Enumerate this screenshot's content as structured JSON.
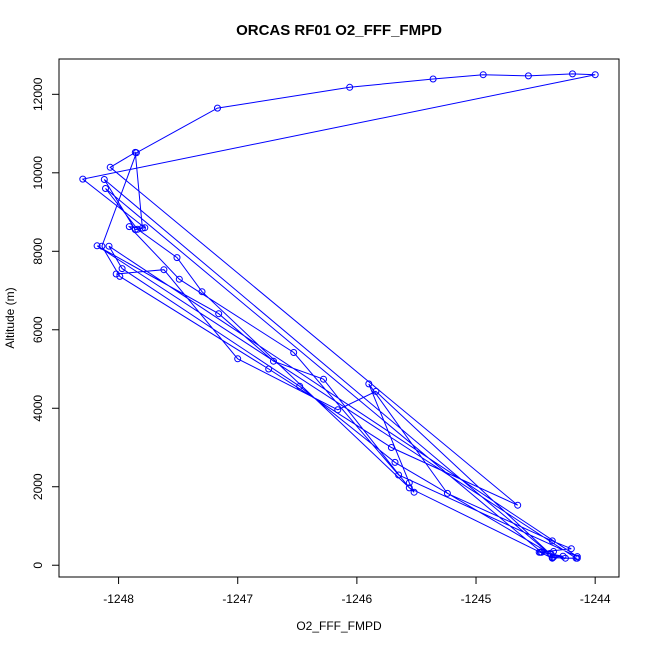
{
  "chart_data": {
    "type": "line",
    "title": "ORCAS RF01 O2_FFF_FMPD",
    "xlabel": "O2_FFF_FMPD",
    "ylabel": "Altitude (m)",
    "xlim": [
      -1248.5,
      -1243.8
    ],
    "ylim": [
      -300,
      12900
    ],
    "xticks": [
      -1248,
      -1247,
      -1246,
      -1245,
      -1244
    ],
    "yticks": [
      0,
      2000,
      4000,
      6000,
      8000,
      10000,
      12000
    ],
    "xtick_labels": [
      "-1248",
      "-1247",
      "-1246",
      "-1245",
      "-1244"
    ],
    "ytick_labels": [
      "0",
      "2000",
      "4000",
      "6000",
      "8000",
      "10000",
      "12000"
    ],
    "grid": false,
    "color": "#0000ff",
    "marker": "open-circle",
    "series": [
      {
        "x": [
          -1244.15,
          -1244.25,
          -1244.37,
          -1244.46,
          -1244.35,
          -1244.47,
          -1244.2,
          -1244.36,
          -1245.24,
          -1245.9,
          -1245.56,
          -1245.52,
          -1247.3,
          -1247.51,
          -1247.84,
          -1248.11,
          -1244.45,
          -1244.27,
          -1244.36,
          -1244.36,
          -1245.56,
          -1246.28,
          -1246.7,
          -1247.16,
          -1248.18,
          -1244.16,
          -1244.36,
          -1244.38,
          -1245.68,
          -1246.48,
          -1247.97,
          -1248.08,
          -1244.15,
          -1245.65,
          -1246.53,
          -1247.49,
          -1247.91,
          -1247.8,
          -1247.86,
          -1248.07,
          -1244.65,
          -1245.71,
          -1246.74,
          -1247.99,
          -1248.14,
          -1247.85,
          -1247.17,
          -1246.06,
          -1245.36,
          -1244.94,
          -1244.56,
          -1244.19,
          -1244.0,
          -1248.3,
          -1247.78,
          -1247.86,
          -1248.12,
          -1244.35,
          -1245.84,
          -1246.16,
          -1247.0,
          -1247.62,
          -1248.02
        ],
        "y": [
          180,
          180,
          280,
          330,
          350,
          330,
          420,
          620,
          1830,
          4620,
          2100,
          1860,
          6970,
          7840,
          8560,
          9600,
          330,
          230,
          200,
          180,
          1970,
          4740,
          5200,
          6410,
          8140,
          180,
          190,
          300,
          2620,
          4560,
          7560,
          8130,
          220,
          2300,
          5420,
          7290,
          8630,
          8590,
          10520,
          10140,
          1530,
          3000,
          5000,
          7360,
          8130,
          10510,
          11650,
          12180,
          12390,
          12500,
          12470,
          12520,
          12500,
          9840,
          8600,
          8550,
          9830,
          210,
          4430,
          3960,
          5260,
          7530,
          7420
        ]
      }
    ]
  }
}
